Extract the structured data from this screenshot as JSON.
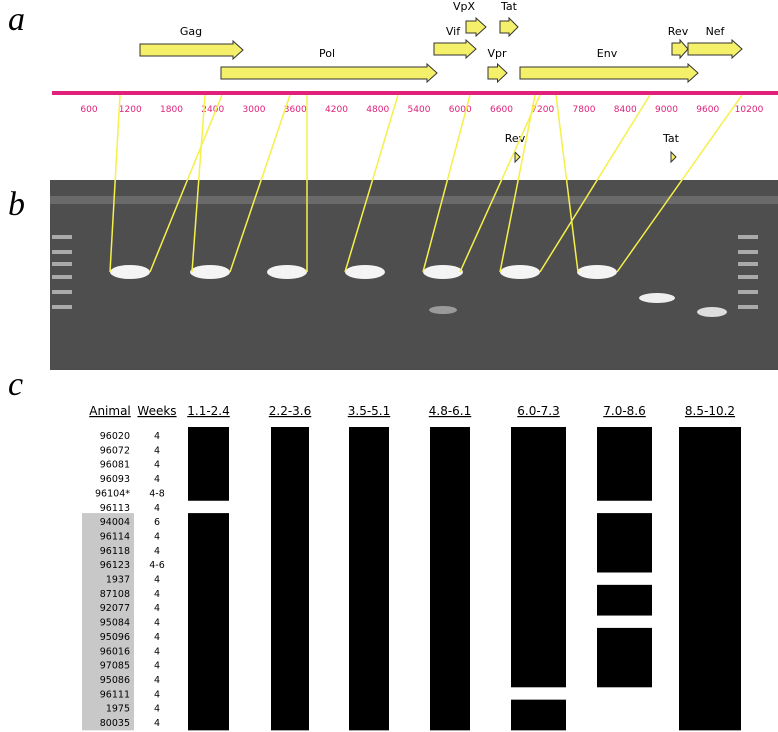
{
  "panel_labels": [
    "a",
    "b",
    "c"
  ],
  "genome": {
    "genes": [
      "Gag",
      "Pol",
      "Vif",
      "VpX",
      "Tat",
      "Vpr",
      "Env",
      "Rev",
      "Nef"
    ],
    "ticks": [
      600,
      1200,
      1800,
      2400,
      3000,
      3600,
      4200,
      4800,
      5400,
      6000,
      6600,
      7200,
      7800,
      8400,
      9000,
      9600,
      10200
    ],
    "splice_labels": [
      "Rev",
      "Tat"
    ]
  },
  "table": {
    "headers": [
      "Animal",
      "Weeks"
    ],
    "regions": [
      "1.1-2.4",
      "2.2-3.6",
      "3.5-5.1",
      "4.8-6.1",
      "6.0-7.3",
      "7.0-8.6",
      "8.5-10.2"
    ],
    "rows": [
      [
        "96020",
        "4"
      ],
      [
        "96072",
        "4"
      ],
      [
        "96081",
        "4"
      ],
      [
        "96093",
        "4"
      ],
      [
        "96104*",
        "4-8"
      ],
      [
        "96113",
        "4"
      ],
      [
        "94004",
        "6"
      ],
      [
        "96114",
        "4"
      ],
      [
        "96118",
        "4"
      ],
      [
        "96123",
        "4-6"
      ],
      [
        "1937",
        "4"
      ],
      [
        "87108",
        "4"
      ],
      [
        "92077",
        "4"
      ],
      [
        "95084",
        "4"
      ],
      [
        "95096",
        "4"
      ],
      [
        "96016",
        "4"
      ],
      [
        "97085",
        "4"
      ],
      [
        "95086",
        "4"
      ],
      [
        "96111",
        "4"
      ],
      [
        "1975",
        "4"
      ],
      [
        "80035",
        "4"
      ]
    ]
  }
}
